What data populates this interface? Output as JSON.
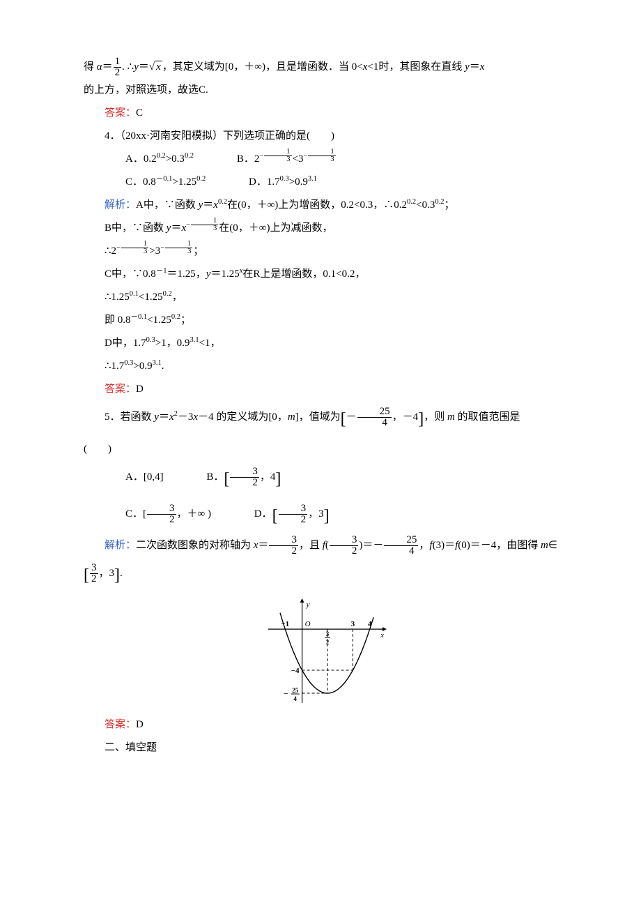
{
  "q3": {
    "tail1_pre": "得 ",
    "tail1_alpha": "α",
    "tail1_eq": "＝",
    "tail1_frac_num": "1",
    "tail1_frac_den": "2",
    "tail1_mid": ". ∴",
    "tail1_y": "y",
    "tail1_eq2": "＝",
    "tail1_sqrt": "x",
    "tail1_after": "，其定义域为[0，＋∞)，且是增函数．当 0<",
    "tail1_x": "x",
    "tail1_lt1": "<1时，其图象在直线 ",
    "tail1_y2": "y",
    "tail1_eqx": "＝",
    "tail1_x2": "x",
    "tail2": " 的上方，对照选项，故选C.",
    "ans_label": "答案：",
    "ans_val": "C"
  },
  "q4": {
    "stem": "4．（20xx·河南安阳模拟）下列选项正确的是(　　)",
    "A_pre": "A．0.2",
    "A_sup1": "0.2",
    "A_gt": ">0.3",
    "A_sup2": "0.2",
    "B_pre": "B．2",
    "B_exp_num": "1",
    "B_exp_den": "3",
    "B_lt": "<3",
    "C_pre": "C．0.8",
    "C_sup1": "－0.1",
    "C_gt": ">1.25",
    "C_sup2": "0.2",
    "D_pre": "D．1.7",
    "D_sup1": "0.3",
    "D_gt": ">0.9",
    "D_sup2": "3.1",
    "sol_label": "解析：",
    "solA": "A中，∵函数 ",
    "solA_y": "y",
    "solA_eq": "＝",
    "solA_x": "x",
    "solA_exp": "0.2",
    "solA_tail": "在(0，＋∞)上为增函数，0.2<0.3，∴0.2",
    "solA_e1": "0.2",
    "solA_lt": "<0.3",
    "solA_e2": "0.2",
    "solA_semi": "；",
    "solB_pre": "B中，∵函数 ",
    "solB_y": "y",
    "solB_eq": "＝",
    "solB_x": "x",
    "solB_exp_num": "1",
    "solB_exp_den": "3",
    "solB_tail": "在(0，＋∞)上为减函数，",
    "solB_line2_pre": "∴2",
    "solB_gt": ">3",
    "solB_semi": "；",
    "solC": "C中，∵0.8",
    "solC_e1": "－1",
    "solC_mid": "＝1.25，",
    "solC_y": "y",
    "solC_eq": "＝1.25",
    "solC_x": "x",
    "solC_tail": "在R上是增函数，0.1<0.2，",
    "solC_l2_pre": "∴1.25",
    "solC_l2_e1": "0.1",
    "solC_l2_lt": "<1.25",
    "solC_l2_e2": "0.2",
    "solC_l2_comma": "，",
    "solC_l3_pre": "即 0.8",
    "solC_l3_e1": "－0.1",
    "solC_l3_lt": "<1.25",
    "solC_l3_e2": "0.2",
    "solC_l3_semi": "；",
    "solD": "D中，1.7",
    "solD_e1": "0.3",
    "solD_gt": ">1，0.9",
    "solD_e2": "3.1",
    "solD_lt1": "<1，",
    "solD_l2_pre": "∴1.7",
    "solD_l2_e1": "0.3",
    "solD_l2_gt": ">0.9",
    "solD_l2_e2": "3.1",
    "solD_l2_dot": ".",
    "ans_label": "答案：",
    "ans_val": "D"
  },
  "q5": {
    "stem_pre": "5．若函数 ",
    "stem_y": "y",
    "stem_eq": "＝",
    "stem_x": "x",
    "stem_sq": "2",
    "stem_mid": "－3",
    "stem_x2": "x",
    "stem_tail1": "－4 的定义域为[0，",
    "stem_m": "m",
    "stem_tail2": "]，值域为",
    "stem_neg": "－",
    "stem_fr_num": "25",
    "stem_fr_den": "4",
    "stem_tail3": "，－4",
    "stem_tail4": "，则 ",
    "stem_m2": "m",
    "stem_tail5": " 的取值范围是",
    "paren": "(　　)",
    "A": "A．[0,4]",
    "B_pre": "B．",
    "B_num": "3",
    "B_den": "2",
    "B_tail": "，4",
    "C_pre": "C．[",
    "C_num": "3",
    "C_den": "2",
    "C_tail": "，＋∞  )",
    "D_pre": "D．",
    "D_num": "3",
    "D_den": "2",
    "D_tail": "，3",
    "sol_label": "解析：",
    "sol_pre": "二次函数图象的对称轴为 ",
    "sol_x": "x",
    "sol_eq": "＝",
    "sol_fr1_num": "3",
    "sol_fr1_den": "2",
    "sol_mid1": "，且 ",
    "sol_f": "f",
    "sol_p1": "(",
    "sol_fr2_num": "3",
    "sol_fr2_den": "2",
    "sol_p2": ")＝－",
    "sol_fr3_num": "25",
    "sol_fr3_den": "4",
    "sol_mid2": "，",
    "sol_f2": "f",
    "sol_fv": "(3)＝",
    "sol_f3": "f",
    "sol_fv2": "(0)＝－4，由图得 ",
    "sol_m": "m",
    "sol_in": "∈",
    "ans_fr_num": "3",
    "ans_fr_den": "2",
    "ans_tail": "，3",
    "ans_dot": ".",
    "ans_label": "答案：",
    "ans_val": "D"
  },
  "sec2": "二、填空题",
  "graph": {
    "width": 170,
    "height": 150,
    "bg": "#ffffff",
    "axis_color": "#000000",
    "curve_color": "#000000",
    "dash": "4,3",
    "x_label": "x",
    "y_label": "y",
    "origin_label": "O",
    "x_ticks": [
      {
        "x": -1,
        "label": "−1"
      },
      {
        "x": 3,
        "label": "3"
      },
      {
        "x": 4,
        "label": "4"
      }
    ],
    "x_frac": {
      "num": "3",
      "den": "2",
      "x": 1.5
    },
    "y_ticks": [
      {
        "y": -4,
        "label": "−4"
      }
    ],
    "y_frac": {
      "num": "25",
      "den": "4",
      "y": -6.25,
      "neg": "−"
    },
    "vertex_x": 1.5,
    "vertex_y": -6.25,
    "roots": [
      -1,
      4
    ],
    "dash_x": 3,
    "dash_y": -4
  }
}
